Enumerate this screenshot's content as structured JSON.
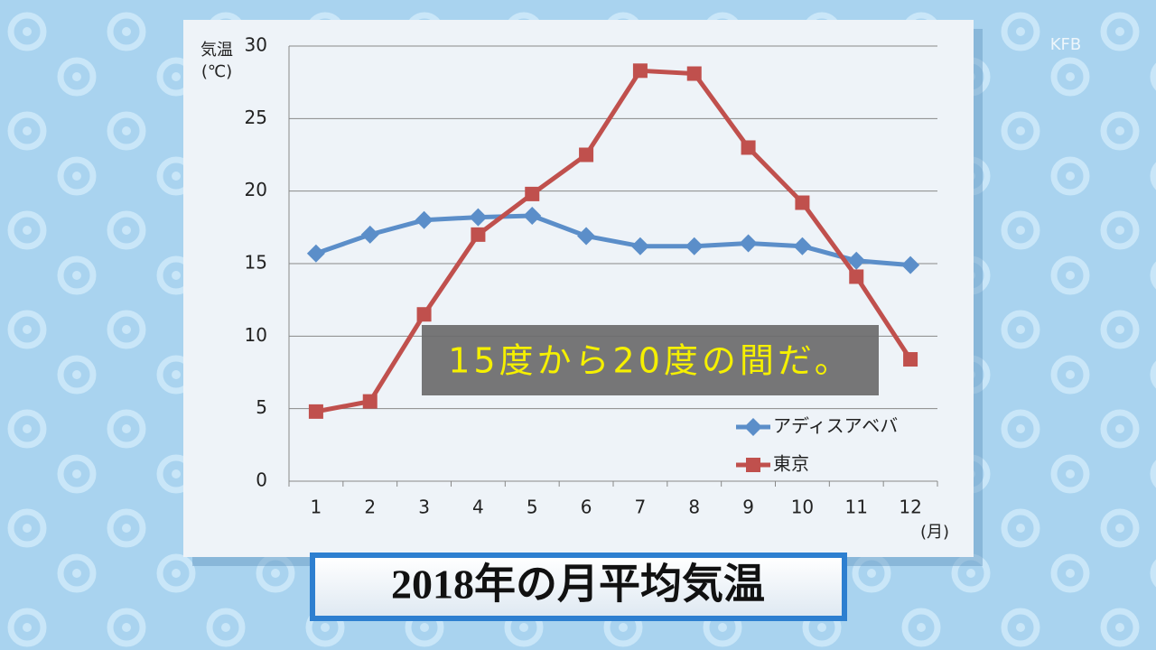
{
  "chart_data": {
    "type": "line",
    "title": "2018年の月平均気温",
    "caption": "15度から20度の間だ。",
    "logo": "KFB",
    "y_label": "気温",
    "y_unit": "(℃)",
    "x_unit": "(月)",
    "categories": [
      "1",
      "2",
      "3",
      "4",
      "5",
      "6",
      "7",
      "8",
      "9",
      "10",
      "11",
      "12"
    ],
    "series": [
      {
        "name": "アディスアベバ",
        "color": "#5b8ec9",
        "marker": "diamond",
        "values": [
          15.7,
          17.0,
          18.0,
          18.2,
          18.3,
          16.9,
          16.2,
          16.2,
          16.4,
          16.2,
          15.2,
          14.9
        ]
      },
      {
        "name": "東京",
        "color": "#c0504d",
        "marker": "square",
        "values": [
          4.8,
          5.5,
          11.5,
          17.0,
          19.8,
          22.5,
          28.3,
          28.1,
          23.0,
          19.2,
          14.1,
          8.4
        ]
      }
    ],
    "ylim": [
      0,
      30
    ],
    "yticks": [
      0,
      5,
      10,
      15,
      20,
      25,
      30
    ],
    "grid": true
  }
}
